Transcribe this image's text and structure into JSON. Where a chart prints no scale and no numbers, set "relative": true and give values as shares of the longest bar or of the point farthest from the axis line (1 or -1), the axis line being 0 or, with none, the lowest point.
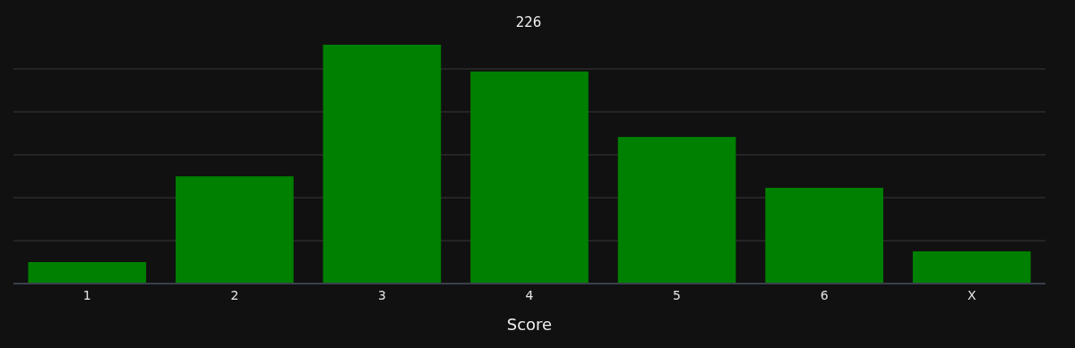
{
  "chart_data": {
    "type": "bar",
    "title": "226",
    "xlabel": "Score",
    "categories": [
      "1",
      "2",
      "3",
      "4",
      "5",
      "6",
      "X"
    ],
    "values": [
      0.09,
      0.449,
      1,
      0.888,
      0.614,
      0.401,
      0.135
    ],
    "color": "#008000",
    "relative": true,
    "grid": "y"
  }
}
